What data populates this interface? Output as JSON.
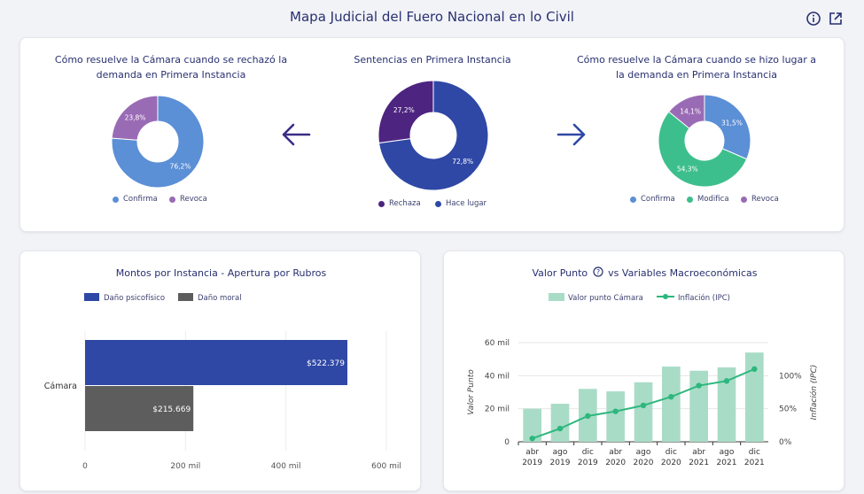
{
  "header": {
    "title": "Mapa Judicial del Fuero Nacional en lo Civil",
    "info_icon": "info-icon",
    "external_icon": "external-link-icon"
  },
  "top_panel": {
    "left": {
      "title_line1": "Cómo resuelve la Cámara cuando se rechazó la",
      "title_line2": "demanda en Primera Instancia",
      "legend": [
        "Confirma",
        "Revoca"
      ]
    },
    "center": {
      "title": "Sentencias en Primera Instancia",
      "legend": [
        "Rechaza",
        "Hace lugar"
      ]
    },
    "right": {
      "title_line1": "Cómo resuelve la Cámara cuando se hizo lugar a",
      "title_line2": "la demanda en Primera Instancia",
      "legend": [
        "Confirma",
        "Modifica",
        "Revoca"
      ]
    },
    "arrow_left_icon": "arrow-left-icon",
    "arrow_right_icon": "arrow-right-icon"
  },
  "bottom_left": {
    "title": "Montos por Instancia - Apertura por Rubros"
  },
  "bottom_right": {
    "title": "Valor Punto",
    "title_suffix": "vs Variables Macroeconómicas",
    "help_icon": "question-icon"
  },
  "colors": {
    "confirma": "#5b8fd6",
    "revoca": "#9a6bb5",
    "rechaza": "#4d2480",
    "hace_lugar": "#2f48a6",
    "modifica": "#3dbf8d",
    "dano_psicofisico": "#2f48a6",
    "dano_moral": "#5d5d5d",
    "valor_punto": "#a9dcc7",
    "inflacion": "#2db77e"
  },
  "chart_data": [
    {
      "type": "pie",
      "id": "left_donut",
      "slices": [
        {
          "label": "Confirma",
          "value": 76.2,
          "display": "76,2%"
        },
        {
          "label": "Revoca",
          "value": 23.8,
          "display": "23,8%"
        }
      ]
    },
    {
      "type": "pie",
      "id": "center_donut",
      "title": "Sentencias en Primera Instancia",
      "slices": [
        {
          "label": "Hace lugar",
          "value": 72.8,
          "display": "72,8%"
        },
        {
          "label": "Rechaza",
          "value": 27.2,
          "display": "27,2%"
        }
      ]
    },
    {
      "type": "pie",
      "id": "right_donut",
      "slices": [
        {
          "label": "Confirma",
          "value": 31.5,
          "display": "31,5%"
        },
        {
          "label": "Modifica",
          "value": 54.3,
          "display": "54,3%"
        },
        {
          "label": "Revoca",
          "value": 14.1,
          "display": "14,1%"
        }
      ]
    },
    {
      "type": "bar",
      "id": "montos",
      "title": "Montos por Instancia - Apertura por Rubros",
      "orientation": "horizontal",
      "categories": [
        "Cámara"
      ],
      "series": [
        {
          "name": "Daño psicofísico",
          "values": [
            522379
          ],
          "labels": [
            "$522.379"
          ]
        },
        {
          "name": "Daño moral",
          "values": [
            215669
          ],
          "labels": [
            "$215.669"
          ]
        }
      ],
      "xlim": [
        0,
        600000
      ],
      "xticks": [
        "0",
        "200 mil",
        "400 mil",
        "600 mil"
      ],
      "legend_position": "top"
    },
    {
      "type": "bar",
      "id": "valor_punto",
      "categories": [
        [
          "abr",
          "2019"
        ],
        [
          "ago",
          "2019"
        ],
        [
          "dic",
          "2019"
        ],
        [
          "abr",
          "2020"
        ],
        [
          "ago",
          "2020"
        ],
        [
          "dic",
          "2020"
        ],
        [
          "abr",
          "2021"
        ],
        [
          "ago",
          "2021"
        ],
        [
          "dic",
          "2021"
        ]
      ],
      "series": [
        {
          "name": "Valor punto Cámara",
          "type": "bar",
          "axis": "left",
          "values": [
            20000,
            23000,
            32000,
            30500,
            36000,
            45500,
            43000,
            45000,
            54000
          ]
        },
        {
          "name": "Inflación (IPC)",
          "type": "line",
          "axis": "right",
          "values": [
            0.05,
            0.2,
            0.39,
            0.46,
            0.55,
            0.68,
            0.85,
            0.92,
            1.1
          ]
        }
      ],
      "ylabel": "Valor Punto",
      "y2label": "Inflación (IPC)",
      "ylim": [
        0,
        60000
      ],
      "yticks": [
        "0",
        "20 mil",
        "40 mil",
        "60 mil"
      ],
      "y2lim": [
        0,
        1.5
      ],
      "y2ticks": [
        "0%",
        "50%",
        "100%"
      ],
      "grid": true,
      "legend_position": "top"
    }
  ]
}
